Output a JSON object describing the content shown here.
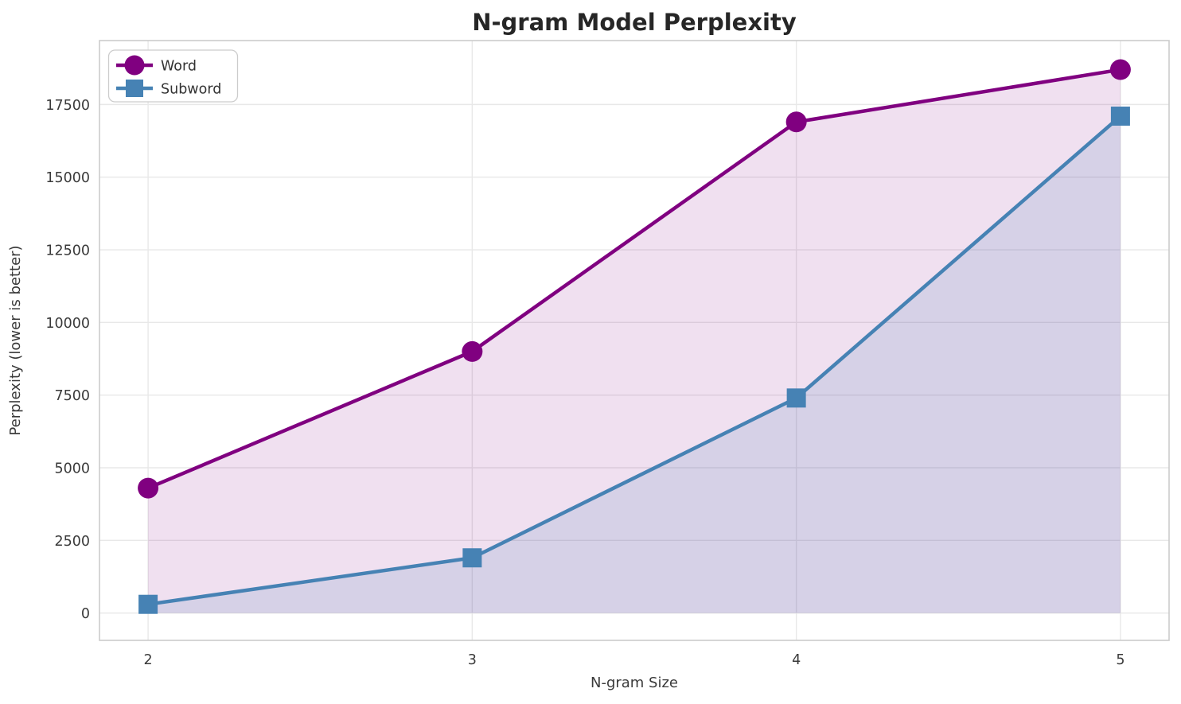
{
  "chart_data": {
    "type": "line",
    "title": "N-gram Model Perplexity",
    "xlabel": "N-gram Size",
    "ylabel": "Perplexity (lower is better)",
    "x": [
      2,
      3,
      4,
      5
    ],
    "series": [
      {
        "name": "Word",
        "values": [
          4300,
          9000,
          16900,
          18700
        ],
        "color": "#800080",
        "marker": "circle",
        "fill_opacity": 0.12
      },
      {
        "name": "Subword",
        "values": [
          300,
          1900,
          7400,
          17100
        ],
        "color": "#4682B4",
        "marker": "square",
        "fill_opacity": 0.15
      }
    ],
    "xticks": [
      2,
      3,
      4,
      5
    ],
    "yticks": [
      0,
      2500,
      5000,
      7500,
      10000,
      12500,
      15000,
      17500
    ],
    "xlim": [
      1.85,
      5.15
    ],
    "ylim": [
      -940,
      19700
    ],
    "grid": true,
    "area_fill_to_zero": true,
    "legend_position": "upper left"
  },
  "styles": {
    "background": "#ffffff",
    "grid_color": "#e8e8e8",
    "spine_color": "#cccccc",
    "tick_text_color": "#3a3a3a",
    "label_text_color": "#3a3a3a",
    "title_color": "#262626",
    "legend_border_color": "#cccccc",
    "legend_bg": "#ffffff",
    "legend_text_color": "#333333"
  }
}
